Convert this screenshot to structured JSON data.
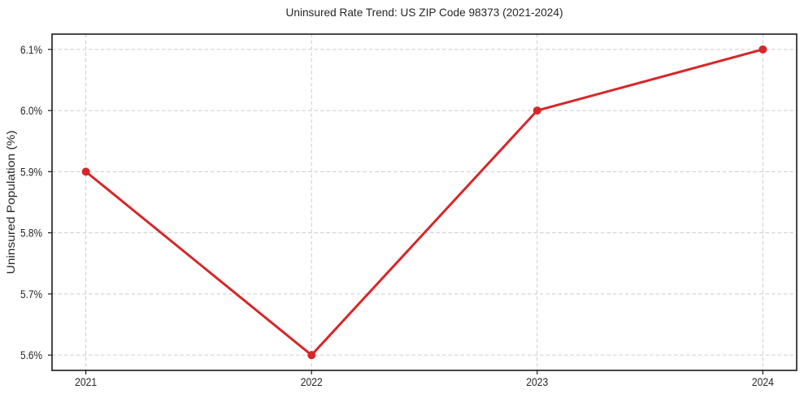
{
  "figure": {
    "background": "#ffffff"
  },
  "chart_data": {
    "type": "line",
    "title": "Uninsured Rate Trend: US ZIP Code 98373 (2021-2024)",
    "xlabel": "",
    "ylabel": "Uninsured Population (%)",
    "x": [
      2021,
      2022,
      2023,
      2024
    ],
    "values": [
      5.9,
      5.6,
      6.0,
      6.1
    ],
    "xtick_labels": [
      "2021",
      "2022",
      "2023",
      "2024"
    ],
    "yticks": [
      5.6,
      5.7,
      5.8,
      5.9,
      6.0,
      6.1
    ],
    "ytick_labels": [
      "5.6%",
      "5.7%",
      "5.8%",
      "5.9%",
      "6.0%",
      "6.1%"
    ],
    "xlim": [
      2020.85,
      2024.15
    ],
    "ylim": [
      5.575,
      6.125
    ],
    "grid": true,
    "grid_style": "dashed",
    "grid_color": "#cccccc",
    "axis_color": "#1a1a1a",
    "text_color": "#262626",
    "line_color": "#d62728",
    "marker_color": "#d62728",
    "marker": "circle",
    "legend": "none"
  }
}
